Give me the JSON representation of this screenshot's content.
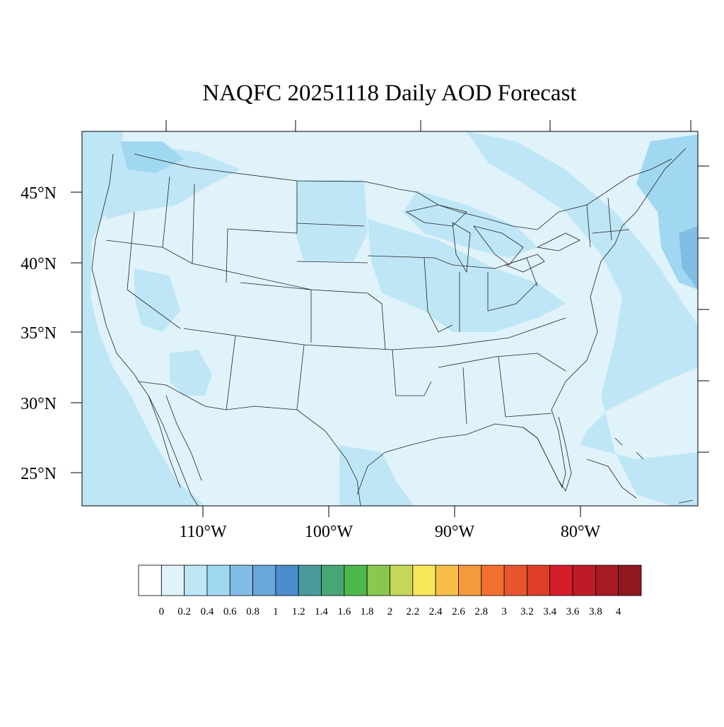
{
  "title": "NAQFC 20251118 Daily AOD Forecast",
  "map": {
    "lat_labels": [
      "45°N",
      "40°N",
      "35°N",
      "30°N",
      "25°N"
    ],
    "lon_labels": [
      "110°W",
      "100°W",
      "90°W",
      "80°W"
    ],
    "background_color": "#e0f3fb"
  },
  "colorbar": {
    "labels": [
      "0",
      "0.2",
      "0.4",
      "0.6",
      "0.8",
      "1",
      "1.2",
      "1.4",
      "1.6",
      "1.8",
      "2",
      "2.2",
      "2.4",
      "2.6",
      "2.8",
      "3",
      "3.2",
      "3.4",
      "3.6",
      "3.8",
      "4"
    ],
    "colors": [
      "#ffffff",
      "#e0f3fb",
      "#bfe6f7",
      "#a0d8f2",
      "#82bde6",
      "#69a6da",
      "#4a8ccc",
      "#4a9b9e",
      "#47a772",
      "#4db84c",
      "#88c750",
      "#c4d85a",
      "#f8e65b",
      "#f7bf4a",
      "#f59a3c",
      "#f2702e",
      "#e8552d",
      "#de3d2a",
      "#d41f2b",
      "#bf1b27",
      "#a61b23",
      "#8f1720"
    ]
  }
}
